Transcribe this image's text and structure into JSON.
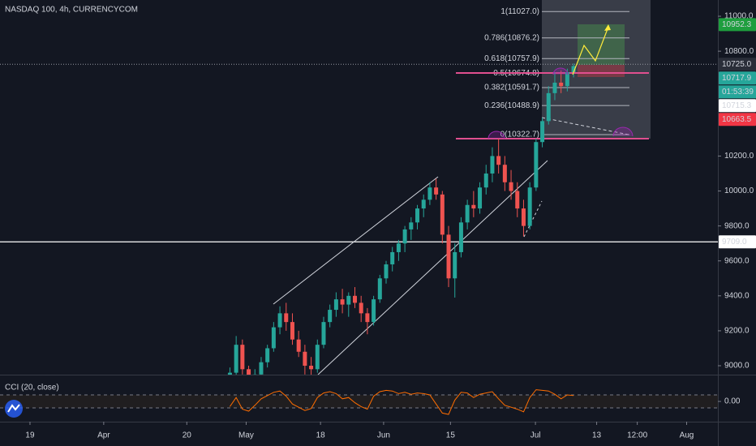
{
  "chart_data": {
    "type": "candlestick",
    "title": "NASDAQ 100, 4h, CURRENCYCOM",
    "x": [
      32,
      33,
      34,
      35,
      36,
      37,
      38,
      39,
      40,
      41,
      42,
      43,
      44,
      45,
      46,
      47,
      48,
      49,
      50,
      51,
      52,
      53,
      54,
      55,
      56,
      57,
      58,
      59,
      60,
      61,
      62,
      63,
      64,
      65,
      66,
      67,
      68,
      69,
      70,
      71,
      72,
      73,
      74,
      75,
      76,
      77,
      78,
      79,
      80,
      81,
      82,
      83,
      84,
      85,
      86,
      87
    ],
    "open": [
      8900,
      8960,
      9120,
      8980,
      8900,
      8950,
      9020,
      9100,
      9220,
      9300,
      9250,
      9150,
      9080,
      9000,
      8980,
      9120,
      9250,
      9320,
      9380,
      9350,
      9400,
      9360,
      9300,
      9250,
      9380,
      9500,
      9580,
      9650,
      9700,
      9780,
      9820,
      9900,
      9950,
      10020,
      9980,
      9750,
      9500,
      9650,
      9820,
      9920,
      9900,
      10020,
      10100,
      10200,
      10150,
      10050,
      10000,
      9900,
      9800,
      10020,
      10280,
      10400,
      10560,
      10620,
      10600,
      10680
    ],
    "high": [
      8990,
      9170,
      9150,
      9000,
      8980,
      9050,
      9120,
      9250,
      9340,
      9360,
      9300,
      9200,
      9120,
      9050,
      9150,
      9280,
      9350,
      9420,
      9440,
      9420,
      9450,
      9400,
      9330,
      9400,
      9520,
      9600,
      9680,
      9720,
      9800,
      9850,
      9920,
      9980,
      10050,
      10070,
      10000,
      9800,
      9700,
      9850,
      9950,
      10000,
      10050,
      10150,
      10250,
      10300,
      10200,
      10120,
      10050,
      9950,
      10050,
      10300,
      10420,
      10600,
      10680,
      10690,
      10700,
      10730
    ],
    "low": [
      8880,
      8940,
      8950,
      8850,
      8860,
      8930,
      8990,
      9080,
      9180,
      9200,
      9120,
      9050,
      8950,
      8930,
      8960,
      9100,
      9220,
      9280,
      9300,
      9280,
      9330,
      9250,
      9180,
      9230,
      9360,
      9470,
      9540,
      9600,
      9650,
      9720,
      9780,
      9850,
      9920,
      9950,
      9700,
      9450,
      9390,
      9620,
      9780,
      9850,
      9870,
      9980,
      10050,
      10100,
      10000,
      9950,
      9850,
      9740,
      9780,
      10000,
      10250,
      10380,
      10520,
      10560,
      10570,
      10650
    ],
    "close": [
      8960,
      9120,
      8980,
      8900,
      8950,
      9020,
      9100,
      9220,
      9300,
      9250,
      9150,
      9080,
      9000,
      8980,
      9120,
      9250,
      9320,
      9380,
      9350,
      9400,
      9360,
      9300,
      9250,
      9380,
      9500,
      9580,
      9650,
      9700,
      9780,
      9820,
      9900,
      9950,
      10020,
      9980,
      9750,
      9500,
      9650,
      9820,
      9920,
      9900,
      10020,
      10100,
      10200,
      10150,
      10050,
      10000,
      9900,
      9800,
      10020,
      10280,
      10400,
      10560,
      10620,
      10600,
      10680,
      10715
    ],
    "up_color": "#26a69a",
    "down_color": "#ef5350",
    "xlim": [
      -4.8,
      110.1
    ],
    "xticks": [
      {
        "value": 0,
        "label": "19"
      },
      {
        "value": 11.8,
        "label": "Apr"
      },
      {
        "value": 25.1,
        "label": "20"
      },
      {
        "value": 34.6,
        "label": "May"
      },
      {
        "value": 46.5,
        "label": "18"
      },
      {
        "value": 56.6,
        "label": "Jun"
      },
      {
        "value": 67.3,
        "label": "15"
      },
      {
        "value": 80.9,
        "label": "Jul"
      },
      {
        "value": 90.7,
        "label": "13"
      },
      {
        "value": 97.2,
        "label": "12:00"
      },
      {
        "value": 105.1,
        "label": "Aug"
      }
    ],
    "ylim": [
      8949,
      11093
    ],
    "yticks": [
      {
        "value": 9000,
        "label": "9000.0"
      },
      {
        "value": 9200,
        "label": "9200.0"
      },
      {
        "value": 9400,
        "label": "9400.0"
      },
      {
        "value": 9600,
        "label": "9600.0"
      },
      {
        "value": 9800,
        "label": "9800.0"
      },
      {
        "value": 10000,
        "label": "10000.0"
      },
      {
        "value": 10200,
        "label": "10200.0"
      },
      {
        "value": 10800,
        "label": "10800.0"
      },
      {
        "value": 11000,
        "label": "11000.0"
      }
    ],
    "fib": [
      {
        "value": 11027,
        "label": "1(11027.0)"
      },
      {
        "value": 10876.2,
        "label": "0.786(10876.2)"
      },
      {
        "value": 10757.9,
        "label": "0.618(10757.9)"
      },
      {
        "value": 10674.8,
        "label": "0.5(10674.8)"
      },
      {
        "value": 10591.7,
        "label": "0.382(10591.7)"
      },
      {
        "value": 10488.9,
        "label": "0.236(10488.9)"
      },
      {
        "value": 10322.7,
        "label": "0(10322.7)"
      }
    ],
    "markers": [
      {
        "value": 10952.3,
        "label": "10952.3",
        "color": "#1e9e3e",
        "text_color": "#ffffff"
      },
      {
        "value": 10725,
        "label": "10725.0",
        "color": "#2a2e39",
        "text_color": "#ffffff"
      },
      {
        "value": 10717.9,
        "label": "10717.9",
        "color": "#26a69a",
        "text_color": "#ffffff",
        "countdown": "01:53:39"
      },
      {
        "value": 10715.3,
        "label": "10715.3",
        "color": "#ffffff",
        "text_color": "#131722"
      },
      {
        "value": 10663.5,
        "label": "10663.5",
        "color": "#f23645",
        "text_color": "#ffffff"
      },
      {
        "value": 9709,
        "label": "9709.0",
        "color": "#ffffff",
        "text_color": "#131722"
      }
    ],
    "cci": {
      "label": "CCI (20, close)",
      "color": "#ff6d00",
      "values": [
        -80,
        60,
        -120,
        -150,
        -60,
        40,
        90,
        140,
        160,
        80,
        -40,
        -90,
        -140,
        -110,
        60,
        130,
        150,
        120,
        40,
        60,
        -20,
        -80,
        -120,
        80,
        150,
        170,
        160,
        120,
        140,
        110,
        130,
        120,
        100,
        -40,
        -180,
        -200,
        20,
        140,
        130,
        60,
        110,
        130,
        150,
        40,
        -60,
        -90,
        -120,
        -160,
        60,
        180,
        170,
        160,
        110,
        40,
        100,
        90
      ],
      "ylim": [
        -312,
        375
      ],
      "yticks": [
        {
          "value": 0,
          "label": "0.00"
        }
      ],
      "bands": [
        -100,
        100
      ]
    }
  }
}
